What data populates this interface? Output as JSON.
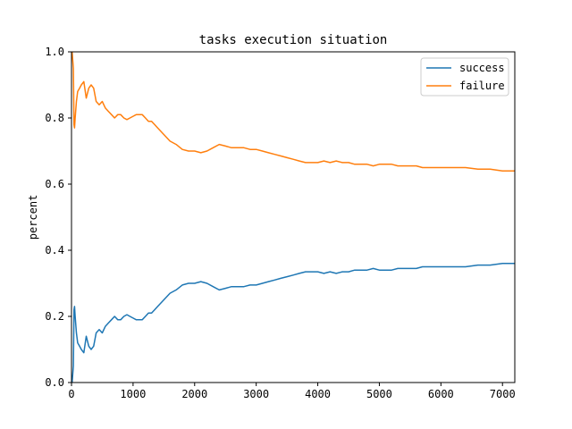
{
  "chart_data": {
    "type": "line",
    "title": "tasks execution situation",
    "xlabel": "",
    "ylabel": "percent",
    "xlim": [
      0,
      7200
    ],
    "ylim": [
      0.0,
      1.0
    ],
    "xticks": [
      0,
      1000,
      2000,
      3000,
      4000,
      5000,
      6000,
      7000
    ],
    "yticks": [
      0.0,
      0.2,
      0.4,
      0.6,
      0.8,
      1.0
    ],
    "xtick_labels": [
      "0",
      "1000",
      "2000",
      "3000",
      "4000",
      "5000",
      "6000",
      "7000"
    ],
    "ytick_labels": [
      "0.0",
      "0.2",
      "0.4",
      "0.6",
      "0.8",
      "1.0"
    ],
    "grid": false,
    "legend_position": "top-right",
    "series": [
      {
        "name": "success",
        "color": "#1f77b4",
        "points": [
          [
            10,
            0.0
          ],
          [
            30,
            0.05
          ],
          [
            40,
            0.22
          ],
          [
            50,
            0.23
          ],
          [
            60,
            0.2
          ],
          [
            80,
            0.15
          ],
          [
            100,
            0.12
          ],
          [
            130,
            0.11
          ],
          [
            160,
            0.1
          ],
          [
            200,
            0.09
          ],
          [
            240,
            0.14
          ],
          [
            280,
            0.11
          ],
          [
            320,
            0.1
          ],
          [
            360,
            0.11
          ],
          [
            400,
            0.15
          ],
          [
            450,
            0.16
          ],
          [
            500,
            0.15
          ],
          [
            550,
            0.17
          ],
          [
            600,
            0.18
          ],
          [
            650,
            0.19
          ],
          [
            700,
            0.2
          ],
          [
            750,
            0.19
          ],
          [
            800,
            0.19
          ],
          [
            850,
            0.2
          ],
          [
            900,
            0.205
          ],
          [
            950,
            0.2
          ],
          [
            1000,
            0.195
          ],
          [
            1050,
            0.19
          ],
          [
            1100,
            0.19
          ],
          [
            1150,
            0.19
          ],
          [
            1200,
            0.2
          ],
          [
            1250,
            0.21
          ],
          [
            1300,
            0.21
          ],
          [
            1350,
            0.22
          ],
          [
            1400,
            0.23
          ],
          [
            1500,
            0.25
          ],
          [
            1600,
            0.27
          ],
          [
            1700,
            0.28
          ],
          [
            1800,
            0.295
          ],
          [
            1900,
            0.3
          ],
          [
            2000,
            0.3
          ],
          [
            2100,
            0.305
          ],
          [
            2200,
            0.3
          ],
          [
            2300,
            0.29
          ],
          [
            2400,
            0.28
          ],
          [
            2500,
            0.285
          ],
          [
            2600,
            0.29
          ],
          [
            2700,
            0.29
          ],
          [
            2800,
            0.29
          ],
          [
            2900,
            0.295
          ],
          [
            3000,
            0.295
          ],
          [
            3100,
            0.3
          ],
          [
            3200,
            0.305
          ],
          [
            3300,
            0.31
          ],
          [
            3400,
            0.315
          ],
          [
            3500,
            0.32
          ],
          [
            3600,
            0.325
          ],
          [
            3700,
            0.33
          ],
          [
            3800,
            0.335
          ],
          [
            3900,
            0.335
          ],
          [
            4000,
            0.335
          ],
          [
            4100,
            0.33
          ],
          [
            4200,
            0.335
          ],
          [
            4300,
            0.33
          ],
          [
            4400,
            0.335
          ],
          [
            4500,
            0.335
          ],
          [
            4600,
            0.34
          ],
          [
            4700,
            0.34
          ],
          [
            4800,
            0.34
          ],
          [
            4900,
            0.345
          ],
          [
            5000,
            0.34
          ],
          [
            5100,
            0.34
          ],
          [
            5200,
            0.34
          ],
          [
            5300,
            0.345
          ],
          [
            5400,
            0.345
          ],
          [
            5500,
            0.345
          ],
          [
            5600,
            0.345
          ],
          [
            5700,
            0.35
          ],
          [
            5800,
            0.35
          ],
          [
            5900,
            0.35
          ],
          [
            6000,
            0.35
          ],
          [
            6200,
            0.35
          ],
          [
            6400,
            0.35
          ],
          [
            6600,
            0.355
          ],
          [
            6800,
            0.355
          ],
          [
            7000,
            0.36
          ],
          [
            7200,
            0.36
          ]
        ]
      },
      {
        "name": "failure",
        "color": "#ff7f0e",
        "points": [
          [
            10,
            1.0
          ],
          [
            30,
            0.95
          ],
          [
            40,
            0.78
          ],
          [
            50,
            0.77
          ],
          [
            60,
            0.8
          ],
          [
            80,
            0.85
          ],
          [
            100,
            0.88
          ],
          [
            130,
            0.89
          ],
          [
            160,
            0.9
          ],
          [
            200,
            0.91
          ],
          [
            240,
            0.86
          ],
          [
            280,
            0.89
          ],
          [
            320,
            0.9
          ],
          [
            360,
            0.89
          ],
          [
            400,
            0.85
          ],
          [
            450,
            0.84
          ],
          [
            500,
            0.85
          ],
          [
            550,
            0.83
          ],
          [
            600,
            0.82
          ],
          [
            650,
            0.81
          ],
          [
            700,
            0.8
          ],
          [
            750,
            0.81
          ],
          [
            800,
            0.81
          ],
          [
            850,
            0.8
          ],
          [
            900,
            0.795
          ],
          [
            950,
            0.8
          ],
          [
            1000,
            0.805
          ],
          [
            1050,
            0.81
          ],
          [
            1100,
            0.81
          ],
          [
            1150,
            0.81
          ],
          [
            1200,
            0.8
          ],
          [
            1250,
            0.79
          ],
          [
            1300,
            0.79
          ],
          [
            1350,
            0.78
          ],
          [
            1400,
            0.77
          ],
          [
            1500,
            0.75
          ],
          [
            1600,
            0.73
          ],
          [
            1700,
            0.72
          ],
          [
            1800,
            0.705
          ],
          [
            1900,
            0.7
          ],
          [
            2000,
            0.7
          ],
          [
            2100,
            0.695
          ],
          [
            2200,
            0.7
          ],
          [
            2300,
            0.71
          ],
          [
            2400,
            0.72
          ],
          [
            2500,
            0.715
          ],
          [
            2600,
            0.71
          ],
          [
            2700,
            0.71
          ],
          [
            2800,
            0.71
          ],
          [
            2900,
            0.705
          ],
          [
            3000,
            0.705
          ],
          [
            3100,
            0.7
          ],
          [
            3200,
            0.695
          ],
          [
            3300,
            0.69
          ],
          [
            3400,
            0.685
          ],
          [
            3500,
            0.68
          ],
          [
            3600,
            0.675
          ],
          [
            3700,
            0.67
          ],
          [
            3800,
            0.665
          ],
          [
            3900,
            0.665
          ],
          [
            4000,
            0.665
          ],
          [
            4100,
            0.67
          ],
          [
            4200,
            0.665
          ],
          [
            4300,
            0.67
          ],
          [
            4400,
            0.665
          ],
          [
            4500,
            0.665
          ],
          [
            4600,
            0.66
          ],
          [
            4700,
            0.66
          ],
          [
            4800,
            0.66
          ],
          [
            4900,
            0.655
          ],
          [
            5000,
            0.66
          ],
          [
            5100,
            0.66
          ],
          [
            5200,
            0.66
          ],
          [
            5300,
            0.655
          ],
          [
            5400,
            0.655
          ],
          [
            5500,
            0.655
          ],
          [
            5600,
            0.655
          ],
          [
            5700,
            0.65
          ],
          [
            5800,
            0.65
          ],
          [
            5900,
            0.65
          ],
          [
            6000,
            0.65
          ],
          [
            6200,
            0.65
          ],
          [
            6400,
            0.65
          ],
          [
            6600,
            0.645
          ],
          [
            6800,
            0.645
          ],
          [
            7000,
            0.64
          ],
          [
            7200,
            0.64
          ]
        ]
      }
    ]
  }
}
